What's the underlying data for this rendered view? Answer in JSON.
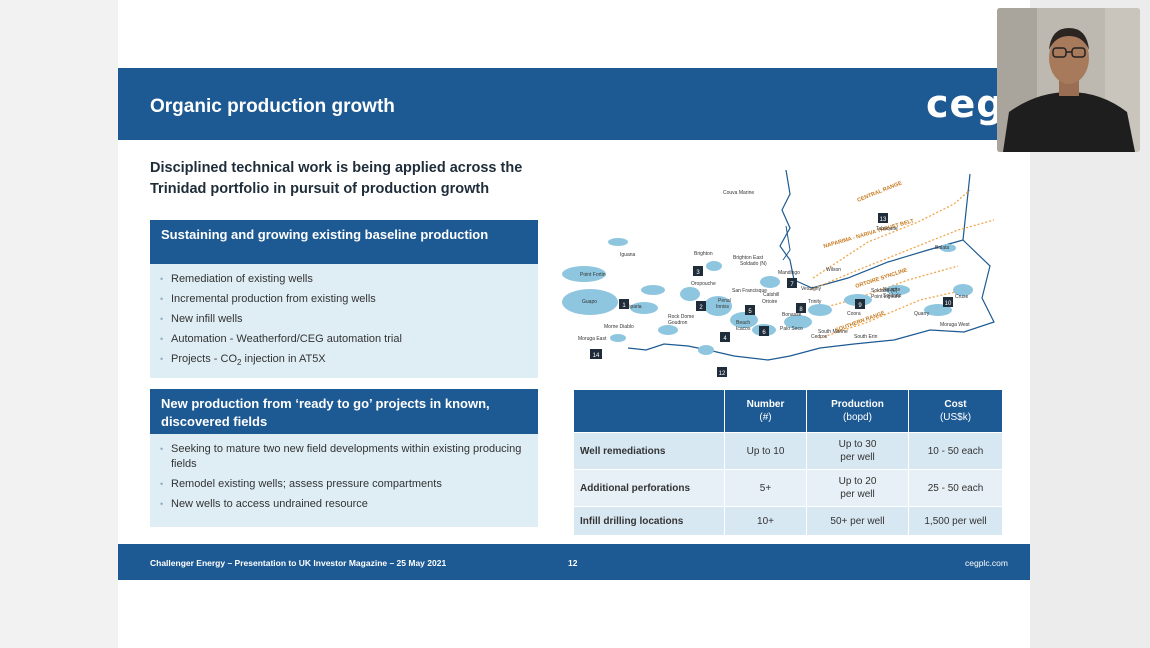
{
  "header": {
    "title": "Organic production growth",
    "logo": "ceg"
  },
  "headline": "Disciplined technical work is being applied across the Trinidad portfolio in pursuit of production growth",
  "section1": {
    "title": "Sustaining and growing existing baseline production",
    "items": [
      "Remediation of existing wells",
      "Incremental production from existing wells",
      "New infill wells",
      "Automation - Weatherford/CEG automation trial"
    ],
    "item5_prefix": "Projects - CO",
    "item5_sub": "2",
    "item5_suffix": " injection in AT5X"
  },
  "section2": {
    "title": "New production from ‘ready to go’ projects in known, discovered fields",
    "items": [
      "Seeking to mature two new field developments within existing producing fields",
      "Remodel existing wells; assess pressure compartments",
      "New wells to access undrained resource"
    ]
  },
  "map": {
    "belts": [
      "CENTRAL RANGE",
      "NAPARIMA - NARIVA THRUST BELT",
      "ORTOIRE SYNCLINE",
      "SOUTHERN RANGE"
    ],
    "places": [
      "Couva Marine",
      "Tabaquite",
      "Balata",
      "Iguana",
      "Brighton",
      "Brighton East",
      "Soldado (N)",
      "Point Fortin",
      "Oropouche",
      "Mandingo",
      "Wilson",
      "Vessigny",
      "San Francisque",
      "Catshill",
      "Ortoire",
      "Navette",
      "Soldado",
      "Cruse",
      "Guapo",
      "Penal",
      "Inniss",
      "Trinity",
      "Soldado (E)",
      "Point Ligoure",
      "Siparia",
      "Rock Dome",
      "Goudron",
      "Bonasse",
      "Coora",
      "Quarry",
      "Morne Diablo",
      "Beach",
      "Icacos",
      "Palo Seco",
      "Moruga West",
      "Moruga East",
      "Cedros",
      "South Erin",
      "South Marine"
    ],
    "markers": [
      "1",
      "2",
      "3",
      "4",
      "5",
      "6",
      "7",
      "8",
      "9",
      "10",
      "12",
      "13",
      "14"
    ]
  },
  "table": {
    "headers": [
      {
        "main": "",
        "sub": ""
      },
      {
        "main": "Number",
        "sub": "(#)"
      },
      {
        "main": "Production",
        "sub": "(bopd)"
      },
      {
        "main": "Cost",
        "sub": "(US$k)"
      }
    ],
    "rows": [
      {
        "label": "Well remediations",
        "number": "Up to 10",
        "production_1": "Up to 30",
        "production_2": "per well",
        "cost": "10 - 50 each"
      },
      {
        "label": "Additional perforations",
        "number": "5+",
        "production_1": "Up to 20",
        "production_2": "per well",
        "cost": "25 - 50 each"
      },
      {
        "label": "Infill drilling locations",
        "number": "10+",
        "production_1": "50+ per well",
        "production_2": "",
        "cost": "1,500 per well"
      }
    ]
  },
  "footer": {
    "left": "Challenger Energy – Presentation to UK Investor Magazine – 25 May 2021",
    "page": "12",
    "right": "cegplc.com"
  },
  "colors": {
    "brand": "#1d5a93",
    "box_bg": "#dfeef5",
    "map_land": "#8fc6df",
    "belt": "#f0a64a"
  }
}
